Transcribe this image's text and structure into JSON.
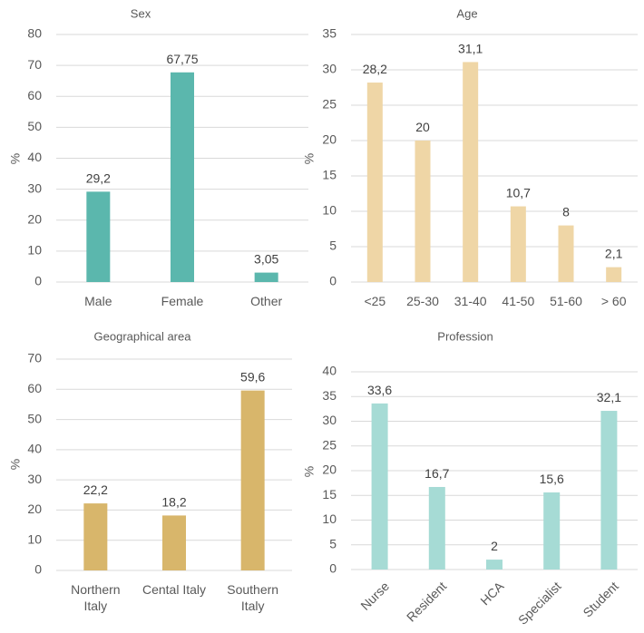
{
  "chart_data": [
    {
      "type": "bar",
      "title": "Sex",
      "xlabel": "",
      "ylabel": "%",
      "categories": [
        "Male",
        "Female",
        "Other"
      ],
      "values": [
        29.2,
        67.75,
        3.05
      ],
      "value_labels": [
        "29,2",
        "67,75",
        "3,05"
      ],
      "ylim": [
        0,
        80
      ],
      "yticks": [
        0,
        10,
        20,
        30,
        40,
        50,
        60,
        70,
        80
      ],
      "grid": true,
      "color": "#5bb7ad"
    },
    {
      "type": "bar",
      "title": "Age",
      "xlabel": "",
      "ylabel": "%",
      "categories": [
        "<25",
        "25-30",
        "31-40",
        "41-50",
        "51-60",
        "> 60"
      ],
      "values": [
        28.2,
        20,
        31.1,
        10.7,
        8,
        2.1
      ],
      "value_labels": [
        "28,2",
        "20",
        "31,1",
        "10,7",
        "8",
        "2,1"
      ],
      "ylim": [
        0,
        35
      ],
      "yticks": [
        0,
        5,
        10,
        15,
        20,
        25,
        30,
        35
      ],
      "grid": true,
      "color": "#efd6a6"
    },
    {
      "type": "bar",
      "title": "Geographical area",
      "xlabel": "",
      "ylabel": "%",
      "categories": [
        [
          "Northern",
          "Italy"
        ],
        [
          "Cental Italy"
        ],
        [
          "Southern",
          "Italy"
        ]
      ],
      "values": [
        22.2,
        18.2,
        59.6
      ],
      "value_labels": [
        "22,2",
        "18,2",
        "59,6"
      ],
      "ylim": [
        0,
        70
      ],
      "yticks": [
        0,
        10,
        20,
        30,
        40,
        50,
        60,
        70
      ],
      "grid": true,
      "color": "#d8b66b"
    },
    {
      "type": "bar",
      "title": "Profession",
      "xlabel": "",
      "ylabel": "%",
      "categories": [
        "Nurse",
        "Resident",
        "HCA",
        "Specialist",
        "Student"
      ],
      "values": [
        33.6,
        16.7,
        2,
        15.6,
        32.1
      ],
      "value_labels": [
        "33,6",
        "16,7",
        "2",
        "15,6",
        "32,1"
      ],
      "ylim": [
        0,
        40
      ],
      "yticks": [
        0,
        5,
        10,
        15,
        20,
        25,
        30,
        35,
        40
      ],
      "grid": true,
      "rotated_labels": true,
      "color": "#a6dbd5"
    }
  ]
}
